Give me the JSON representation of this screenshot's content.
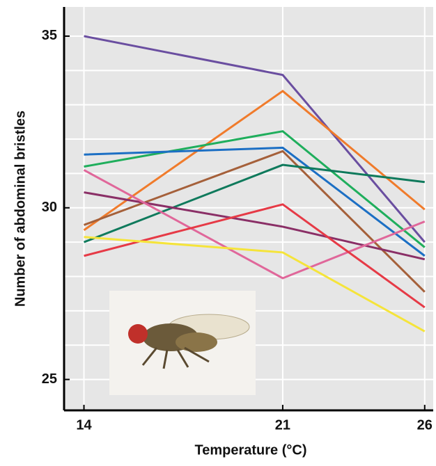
{
  "chart_data": {
    "type": "line",
    "x_label": "Temperature (°C)",
    "y_label": "Number of abdominal bristles",
    "x": [
      14,
      21,
      26
    ],
    "xlim": [
      13.3,
      26.3
    ],
    "xticks": [
      14,
      21,
      26
    ],
    "ylim": [
      24.1,
      35.85
    ],
    "yticks": [
      25,
      30,
      35
    ],
    "ygrid": [
      25,
      26,
      27,
      28,
      29,
      30,
      31,
      32,
      33,
      34,
      35
    ],
    "grid": true,
    "series": [
      {
        "color": "#6a4ea0",
        "values": [
          35.0,
          33.87,
          29.0
        ]
      },
      {
        "color": "#f07b2b",
        "values": [
          29.35,
          33.4,
          29.95
        ]
      },
      {
        "color": "#1fae5c",
        "values": [
          31.2,
          32.23,
          28.85
        ]
      },
      {
        "color": "#1c6fc4",
        "values": [
          31.55,
          31.75,
          28.6
        ]
      },
      {
        "color": "#a5603a",
        "values": [
          29.5,
          31.65,
          27.55
        ]
      },
      {
        "color": "#0f7a5c",
        "values": [
          29.0,
          31.25,
          30.75
        ]
      },
      {
        "color": "#8a2f66",
        "values": [
          30.45,
          29.45,
          28.5
        ]
      },
      {
        "color": "#e0679a",
        "values": [
          31.1,
          27.95,
          29.6
        ]
      },
      {
        "color": "#e63a46",
        "values": [
          28.6,
          30.1,
          27.1
        ]
      },
      {
        "color": "#f5e43a",
        "values": [
          29.15,
          28.7,
          26.4
        ]
      }
    ]
  }
}
